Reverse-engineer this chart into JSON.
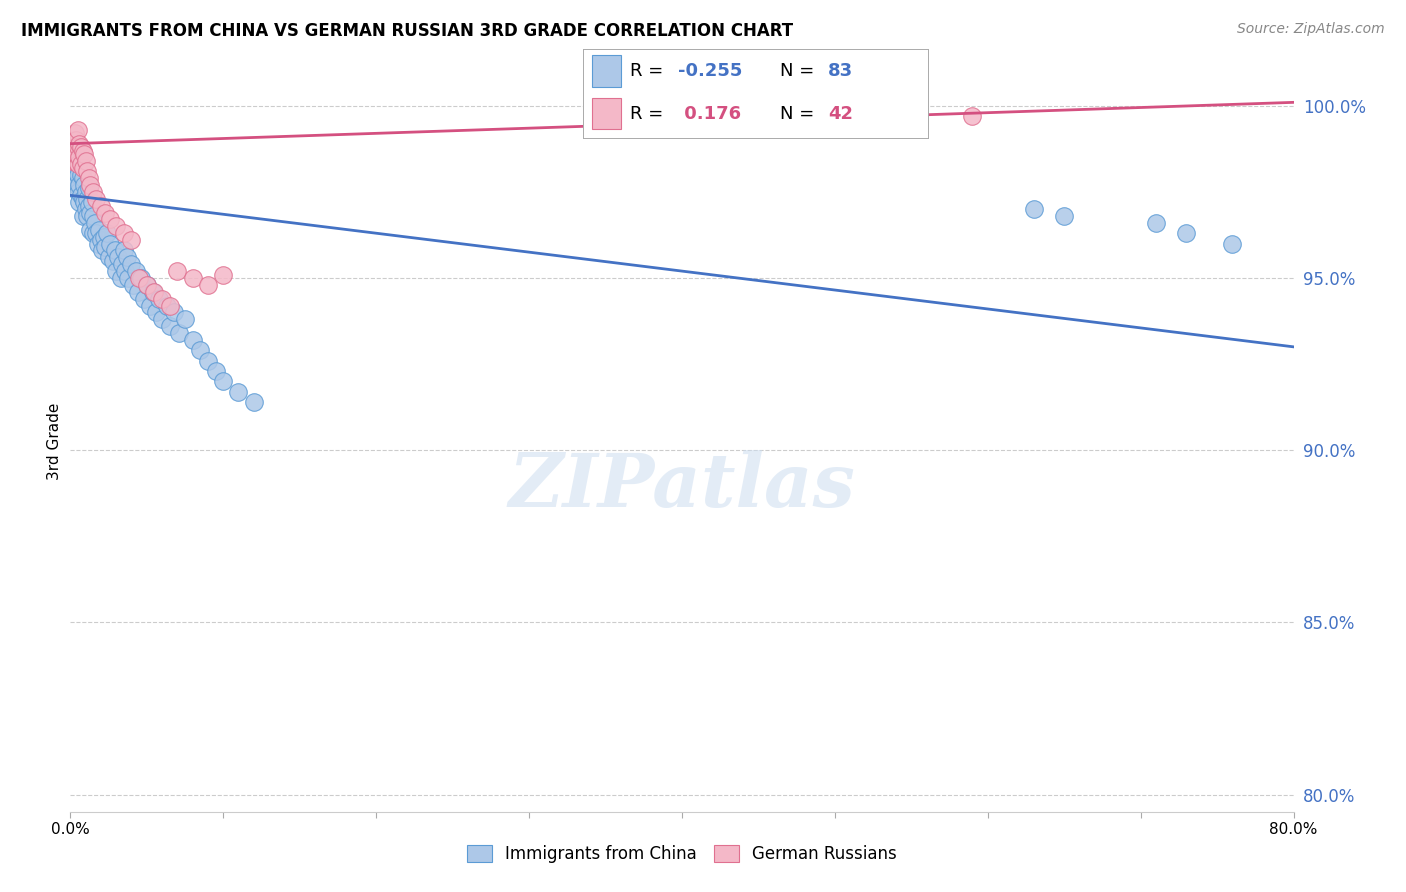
{
  "title": "IMMIGRANTS FROM CHINA VS GERMAN RUSSIAN 3RD GRADE CORRELATION CHART",
  "source": "Source: ZipAtlas.com",
  "ylabel": "3rd Grade",
  "ylabel_right_ticks": [
    "80.0%",
    "85.0%",
    "90.0%",
    "95.0%",
    "100.0%"
  ],
  "ylabel_right_values": [
    0.8,
    0.85,
    0.9,
    0.95,
    1.0
  ],
  "legend_blue_R": "-0.255",
  "legend_blue_N": "83",
  "legend_pink_R": "0.176",
  "legend_pink_N": "42",
  "legend_label_blue": "Immigrants from China",
  "legend_label_pink": "German Russians",
  "blue_color": "#adc8e8",
  "blue_edge_color": "#5b9bd5",
  "blue_line_color": "#4472c4",
  "pink_color": "#f4b8c8",
  "pink_edge_color": "#e07090",
  "pink_line_color": "#d45080",
  "xmin": 0.0,
  "xmax": 0.8,
  "ymin": 0.795,
  "ymax": 1.01,
  "blue_line_x0": 0.0,
  "blue_line_y0": 0.974,
  "blue_line_x1": 0.8,
  "blue_line_y1": 0.93,
  "pink_line_x0": 0.0,
  "pink_line_y0": 0.989,
  "pink_line_x1": 0.8,
  "pink_line_y1": 1.001,
  "blue_x": [
    0.001,
    0.002,
    0.002,
    0.003,
    0.003,
    0.003,
    0.004,
    0.004,
    0.004,
    0.005,
    0.005,
    0.005,
    0.006,
    0.006,
    0.006,
    0.007,
    0.007,
    0.008,
    0.008,
    0.008,
    0.009,
    0.009,
    0.01,
    0.01,
    0.011,
    0.011,
    0.012,
    0.012,
    0.013,
    0.013,
    0.014,
    0.015,
    0.015,
    0.016,
    0.017,
    0.018,
    0.019,
    0.02,
    0.021,
    0.022,
    0.023,
    0.024,
    0.025,
    0.026,
    0.028,
    0.029,
    0.03,
    0.031,
    0.033,
    0.034,
    0.035,
    0.036,
    0.037,
    0.038,
    0.04,
    0.041,
    0.043,
    0.044,
    0.046,
    0.048,
    0.05,
    0.052,
    0.054,
    0.056,
    0.058,
    0.06,
    0.063,
    0.065,
    0.068,
    0.071,
    0.075,
    0.08,
    0.085,
    0.09,
    0.095,
    0.1,
    0.11,
    0.12,
    0.63,
    0.65,
    0.71,
    0.73,
    0.76
  ],
  "blue_y": [
    0.982,
    0.985,
    0.978,
    0.988,
    0.983,
    0.979,
    0.984,
    0.981,
    0.977,
    0.986,
    0.98,
    0.975,
    0.983,
    0.977,
    0.972,
    0.98,
    0.974,
    0.979,
    0.973,
    0.968,
    0.977,
    0.972,
    0.975,
    0.97,
    0.973,
    0.968,
    0.976,
    0.971,
    0.969,
    0.964,
    0.972,
    0.968,
    0.963,
    0.966,
    0.963,
    0.96,
    0.964,
    0.961,
    0.958,
    0.962,
    0.959,
    0.963,
    0.956,
    0.96,
    0.955,
    0.958,
    0.952,
    0.956,
    0.95,
    0.954,
    0.958,
    0.952,
    0.956,
    0.95,
    0.954,
    0.948,
    0.952,
    0.946,
    0.95,
    0.944,
    0.948,
    0.942,
    0.946,
    0.94,
    0.944,
    0.938,
    0.942,
    0.936,
    0.94,
    0.934,
    0.938,
    0.932,
    0.929,
    0.926,
    0.923,
    0.92,
    0.917,
    0.914,
    0.97,
    0.968,
    0.966,
    0.963,
    0.96
  ],
  "pink_x": [
    0.001,
    0.001,
    0.002,
    0.002,
    0.003,
    0.003,
    0.003,
    0.004,
    0.004,
    0.005,
    0.005,
    0.005,
    0.006,
    0.006,
    0.007,
    0.007,
    0.008,
    0.008,
    0.009,
    0.01,
    0.011,
    0.012,
    0.013,
    0.015,
    0.017,
    0.02,
    0.023,
    0.026,
    0.03,
    0.035,
    0.04,
    0.045,
    0.05,
    0.055,
    0.06,
    0.065,
    0.07,
    0.08,
    0.09,
    0.1,
    0.55,
    0.59
  ],
  "pink_y": [
    0.988,
    0.984,
    0.99,
    0.986,
    0.992,
    0.988,
    0.984,
    0.99,
    0.986,
    0.993,
    0.988,
    0.983,
    0.989,
    0.985,
    0.988,
    0.983,
    0.987,
    0.982,
    0.986,
    0.984,
    0.981,
    0.979,
    0.977,
    0.975,
    0.973,
    0.971,
    0.969,
    0.967,
    0.965,
    0.963,
    0.961,
    0.95,
    0.948,
    0.946,
    0.944,
    0.942,
    0.952,
    0.95,
    0.948,
    0.951,
    0.998,
    0.997
  ]
}
